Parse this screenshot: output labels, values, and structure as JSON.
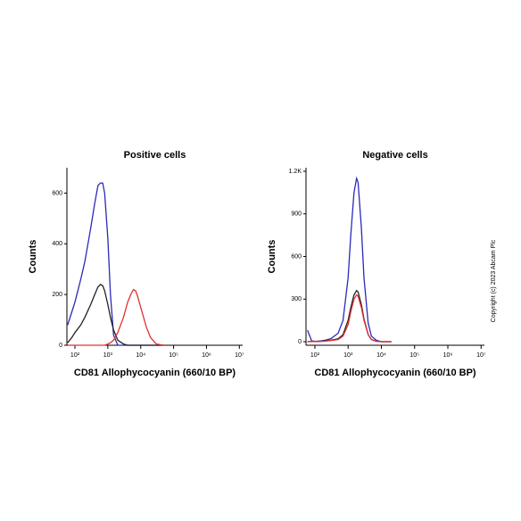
{
  "chart_data": [
    {
      "type": "line",
      "title": "Positive cells",
      "xlabel": "CD81 Allophycocyanin (660/10 BP)",
      "ylabel": "Counts",
      "xscale": "log",
      "xlim": [
        57,
        12600000
      ],
      "ylim": [
        0,
        700
      ],
      "xticks": [
        {
          "value": 100,
          "label": "10²"
        },
        {
          "value": 1000,
          "label": "10³"
        },
        {
          "value": 10000,
          "label": "10⁴"
        },
        {
          "value": 100000,
          "label": "10⁵"
        },
        {
          "value": 1000000,
          "label": "10⁶"
        },
        {
          "value": 10000000,
          "label": "10⁷"
        }
      ],
      "yticks": [
        0,
        200,
        400,
        600
      ],
      "x": [
        60,
        80,
        100,
        150,
        200,
        300,
        400,
        500,
        600,
        700,
        800,
        1000,
        1200,
        1500,
        2000,
        3000,
        4000,
        5000,
        6000,
        7000,
        8000,
        10000,
        15000,
        20000,
        30000,
        50000
      ],
      "series": [
        {
          "color": "#2a2ab8",
          "values": [
            80,
            130,
            170,
            260,
            330,
            460,
            560,
            630,
            640,
            640,
            600,
            420,
            200,
            40,
            0,
            0,
            0,
            0,
            0,
            0,
            0,
            0,
            0,
            0,
            0,
            0
          ]
        },
        {
          "color": "#222222",
          "values": [
            10,
            30,
            50,
            80,
            110,
            160,
            200,
            230,
            240,
            235,
            215,
            160,
            110,
            60,
            20,
            5,
            0,
            0,
            0,
            0,
            0,
            0,
            0,
            0,
            0,
            0
          ]
        },
        {
          "color": "#e03030",
          "values": [
            0,
            0,
            0,
            0,
            0,
            0,
            0,
            0,
            0,
            0,
            0,
            5,
            10,
            20,
            50,
            110,
            170,
            200,
            220,
            215,
            195,
            150,
            70,
            30,
            5,
            0
          ]
        }
      ]
    },
    {
      "type": "line",
      "title": "Negative cells",
      "xlabel": "CD81 Allophycocyanin (660/10 BP)",
      "ylabel": "Counts",
      "xscale": "log",
      "xlim": [
        54,
        12600000
      ],
      "ylim": [
        -25,
        1225
      ],
      "xticks": [
        {
          "value": 100,
          "label": "10²"
        },
        {
          "value": 1000,
          "label": "10³"
        },
        {
          "value": 10000,
          "label": "10⁴"
        },
        {
          "value": 100000,
          "label": "10⁵"
        },
        {
          "value": 1000000,
          "label": "10⁶"
        },
        {
          "value": 10000000,
          "label": "10⁷"
        }
      ],
      "yticks": [
        0,
        300,
        600,
        900,
        {
          "value": 1200,
          "label": "1.2K"
        }
      ],
      "x": [
        60,
        80,
        100,
        150,
        200,
        300,
        500,
        700,
        1000,
        1200,
        1500,
        1800,
        2000,
        2500,
        3000,
        4000,
        5000,
        7000,
        10000,
        20000
      ],
      "series": [
        {
          "color": "#2a2ab8",
          "values": [
            80,
            5,
            2,
            5,
            10,
            20,
            60,
            150,
            450,
            750,
            1050,
            1150,
            1120,
            800,
            450,
            130,
            40,
            10,
            0,
            0
          ]
        },
        {
          "color": "#222222",
          "values": [
            0,
            2,
            2,
            3,
            5,
            10,
            20,
            50,
            150,
            240,
            330,
            360,
            350,
            260,
            160,
            50,
            15,
            3,
            0,
            0
          ]
        },
        {
          "color": "#e03030",
          "values": [
            0,
            1,
            1,
            2,
            4,
            8,
            15,
            40,
            120,
            210,
            300,
            330,
            320,
            240,
            150,
            50,
            15,
            3,
            0,
            0
          ]
        }
      ],
      "annotations": [
        "Copyright (c) 2023 Abcam Plc"
      ]
    }
  ]
}
